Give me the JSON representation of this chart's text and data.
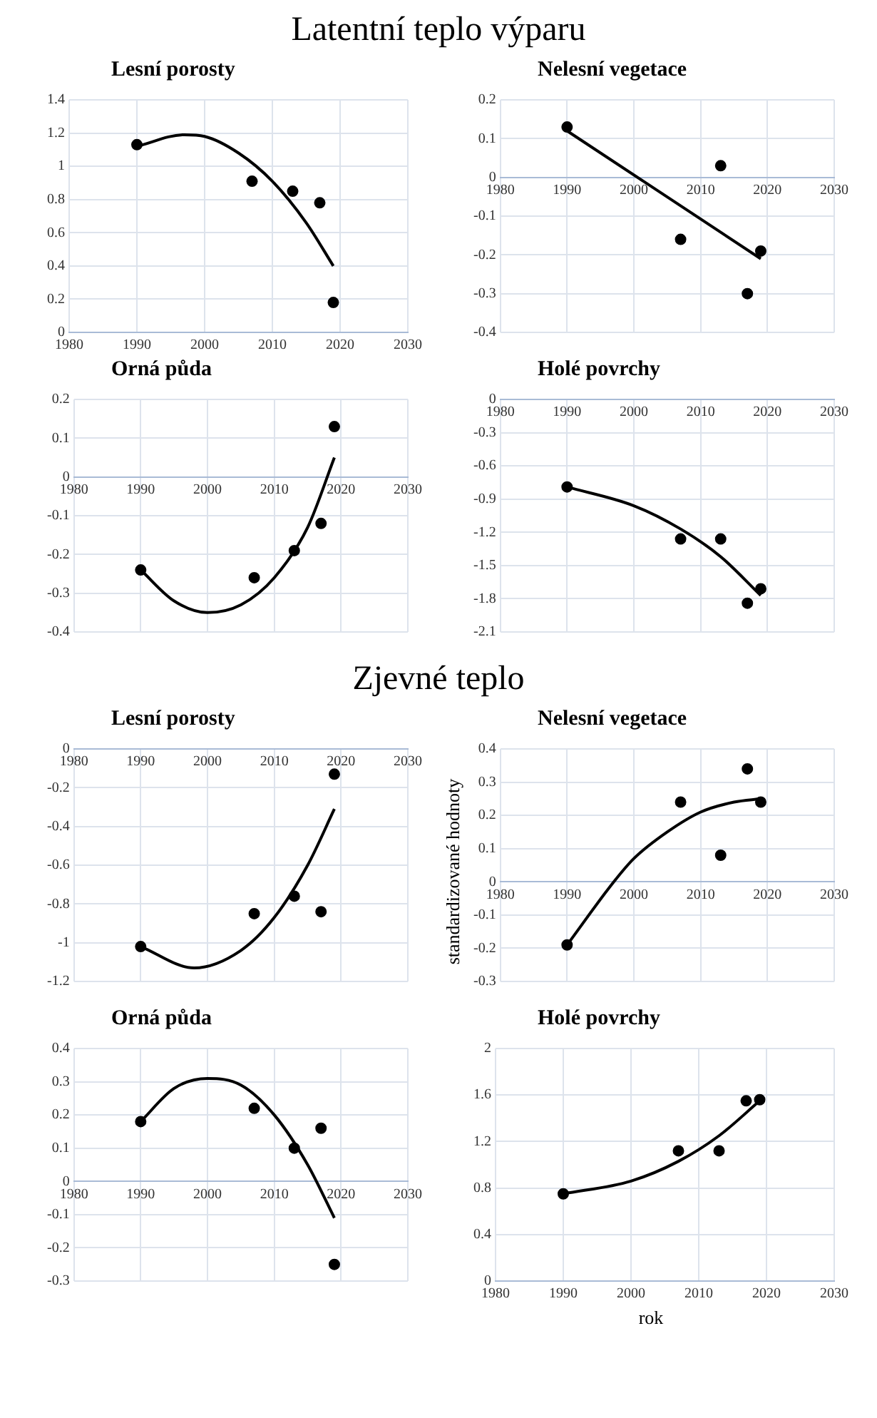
{
  "chart_data": [
    {
      "type": "scatter",
      "title": "Lesní porosty",
      "annotations": [
        "Latentní teplo výparu"
      ],
      "xlim": [
        1980,
        2030
      ],
      "xticks": [
        1980,
        1990,
        2000,
        2010,
        2020,
        2030
      ],
      "ylim": [
        0,
        1.4
      ],
      "yticks": [
        0,
        0.2,
        0.4,
        0.6,
        0.8,
        1,
        1.2,
        1.4
      ],
      "grid": true,
      "series": [
        {
          "type": "scatter",
          "marker": "circle",
          "color": "#000000",
          "x": [
            1990,
            2007,
            2013,
            2017,
            2019
          ],
          "values": [
            1.13,
            0.91,
            0.85,
            0.78,
            0.18
          ]
        },
        {
          "type": "line",
          "color": "#000000",
          "x": [
            1990,
            1997,
            2000,
            2005,
            2010,
            2015,
            2019
          ],
          "values": [
            1.12,
            1.19,
            1.18,
            1.08,
            0.91,
            0.66,
            0.4
          ]
        }
      ]
    },
    {
      "type": "scatter",
      "title": "Nelesní vegetace",
      "xlim": [
        1980,
        2030
      ],
      "xticks": [
        1980,
        1990,
        2000,
        2010,
        2020,
        2030
      ],
      "ylim": [
        -0.4,
        0.2
      ],
      "yticks": [
        -0.4,
        -0.3,
        -0.2,
        -0.1,
        0,
        0.1,
        0.2
      ],
      "grid": true,
      "series": [
        {
          "type": "scatter",
          "marker": "circle",
          "color": "#000000",
          "x": [
            1990,
            2007,
            2013,
            2017,
            2019
          ],
          "values": [
            0.13,
            -0.16,
            0.03,
            -0.3,
            -0.19
          ]
        },
        {
          "type": "line",
          "color": "#000000",
          "x": [
            1990,
            2019
          ],
          "values": [
            0.12,
            -0.21
          ]
        }
      ]
    },
    {
      "type": "scatter",
      "title": "Orná půda",
      "xlim": [
        1980,
        2030
      ],
      "xticks": [
        1980,
        1990,
        2000,
        2010,
        2020,
        2030
      ],
      "ylim": [
        -0.4,
        0.2
      ],
      "yticks": [
        -0.4,
        -0.3,
        -0.2,
        -0.1,
        0,
        0.1,
        0.2
      ],
      "grid": true,
      "series": [
        {
          "type": "scatter",
          "marker": "circle",
          "color": "#000000",
          "x": [
            1990,
            2007,
            2013,
            2017,
            2019
          ],
          "values": [
            -0.24,
            -0.26,
            -0.19,
            -0.12,
            0.13
          ]
        },
        {
          "type": "line",
          "color": "#000000",
          "x": [
            1990,
            1995,
            2000,
            2005,
            2010,
            2015,
            2019
          ],
          "values": [
            -0.24,
            -0.32,
            -0.35,
            -0.33,
            -0.26,
            -0.13,
            0.05
          ]
        }
      ]
    },
    {
      "type": "scatter",
      "title": "Holé povrchy",
      "xlim": [
        1980,
        2030
      ],
      "xticks": [
        1980,
        1990,
        2000,
        2010,
        2020,
        2030
      ],
      "ylim": [
        -2.1,
        0
      ],
      "yticks": [
        -2.1,
        -1.8,
        -1.5,
        -1.2,
        -0.9,
        -0.6,
        -0.3,
        0
      ],
      "grid": true,
      "series": [
        {
          "type": "scatter",
          "marker": "circle",
          "color": "#000000",
          "x": [
            1990,
            2007,
            2013,
            2017,
            2019
          ],
          "values": [
            -0.79,
            -1.26,
            -1.26,
            -1.84,
            -1.71
          ]
        },
        {
          "type": "line",
          "color": "#000000",
          "x": [
            1990,
            2000,
            2007,
            2013,
            2019
          ],
          "values": [
            -0.79,
            -0.96,
            -1.17,
            -1.42,
            -1.77
          ]
        }
      ]
    },
    {
      "type": "scatter",
      "title": "Lesní porosty",
      "annotations": [
        "Zjevné teplo"
      ],
      "xlim": [
        1980,
        2030
      ],
      "xticks": [
        1980,
        1990,
        2000,
        2010,
        2020,
        2030
      ],
      "ylim": [
        -1.2,
        0
      ],
      "yticks": [
        -1.2,
        -1,
        -0.8,
        -0.6,
        -0.4,
        -0.2,
        0
      ],
      "grid": true,
      "series": [
        {
          "type": "scatter",
          "marker": "circle",
          "color": "#000000",
          "x": [
            1990,
            2007,
            2013,
            2017,
            2019
          ],
          "values": [
            -1.02,
            -0.85,
            -0.76,
            -0.84,
            -0.13
          ]
        },
        {
          "type": "line",
          "color": "#000000",
          "x": [
            1990,
            1998,
            2005,
            2010,
            2015,
            2019
          ],
          "values": [
            -1.02,
            -1.13,
            -1.04,
            -0.87,
            -0.6,
            -0.31
          ]
        }
      ]
    },
    {
      "type": "scatter",
      "title": "Nelesní vegetace",
      "ylabel": "standardizované hodnoty",
      "xlim": [
        1980,
        2030
      ],
      "xticks": [
        1980,
        1990,
        2000,
        2010,
        2020,
        2030
      ],
      "ylim": [
        -0.3,
        0.4
      ],
      "yticks": [
        -0.3,
        -0.2,
        -0.1,
        0,
        0.1,
        0.2,
        0.3,
        0.4
      ],
      "grid": true,
      "series": [
        {
          "type": "scatter",
          "marker": "circle",
          "color": "#000000",
          "x": [
            1990,
            2007,
            2013,
            2017,
            2019
          ],
          "values": [
            -0.19,
            0.24,
            0.08,
            0.34,
            0.24
          ]
        },
        {
          "type": "line",
          "color": "#000000",
          "x": [
            1990,
            1997,
            2000,
            2005,
            2010,
            2015,
            2019
          ],
          "values": [
            -0.19,
            0,
            0.07,
            0.15,
            0.21,
            0.24,
            0.25
          ]
        }
      ]
    },
    {
      "type": "scatter",
      "title": "Orná půda",
      "xlim": [
        1980,
        2030
      ],
      "xticks": [
        1980,
        1990,
        2000,
        2010,
        2020,
        2030
      ],
      "ylim": [
        -0.3,
        0.4
      ],
      "yticks": [
        -0.3,
        -0.2,
        -0.1,
        0,
        0.1,
        0.2,
        0.3,
        0.4
      ],
      "grid": true,
      "series": [
        {
          "type": "scatter",
          "marker": "circle",
          "color": "#000000",
          "x": [
            1990,
            2007,
            2013,
            2017,
            2019
          ],
          "values": [
            0.18,
            0.22,
            0.1,
            0.16,
            -0.25
          ]
        },
        {
          "type": "line",
          "color": "#000000",
          "x": [
            1990,
            1995,
            2000,
            2005,
            2010,
            2015,
            2019
          ],
          "values": [
            0.18,
            0.28,
            0.31,
            0.29,
            0.2,
            0.05,
            -0.11
          ]
        }
      ]
    },
    {
      "type": "scatter",
      "title": "Holé povrchy",
      "xlabel": "rok",
      "xlim": [
        1980,
        2030
      ],
      "xticks": [
        1980,
        1990,
        2000,
        2010,
        2020,
        2030
      ],
      "ylim": [
        0,
        2
      ],
      "yticks": [
        0,
        0.4,
        0.8,
        1.2,
        1.6,
        2
      ],
      "grid": true,
      "series": [
        {
          "type": "scatter",
          "marker": "circle",
          "color": "#000000",
          "x": [
            1990,
            2007,
            2013,
            2017,
            2019
          ],
          "values": [
            0.75,
            1.12,
            1.12,
            1.55,
            1.56
          ]
        },
        {
          "type": "line",
          "color": "#000000",
          "x": [
            1990,
            2000,
            2007,
            2013,
            2019
          ],
          "values": [
            0.75,
            0.86,
            1.03,
            1.25,
            1.55
          ]
        }
      ]
    }
  ]
}
